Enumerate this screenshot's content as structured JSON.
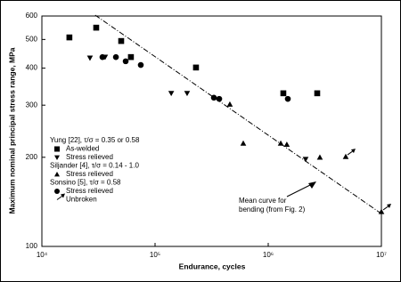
{
  "chart_data": {
    "type": "scatter",
    "xlabel": "Endurance, cycles",
    "ylabel": "Maximum nominal principal stress range, MPa",
    "xscale": "log",
    "yscale": "log",
    "xlim": [
      10000,
      10000000
    ],
    "ylim": [
      100,
      600
    ],
    "xticks": [
      {
        "value": 10000,
        "label": "10⁴"
      },
      {
        "value": 100000,
        "label": "10⁵"
      },
      {
        "value": 1000000,
        "label": "10⁶"
      },
      {
        "value": 10000000,
        "label": "10⁷"
      }
    ],
    "yticks": [
      100,
      200,
      300,
      400,
      500,
      600
    ],
    "legend_groups": [
      "Yung [22], τ/σ = 0.35 or 0.58",
      "Siljander [4], τ/σ = 0.14 - 1.0",
      "Sonsino [5], τ/σ = 0.58"
    ],
    "legend_unbroken": "Unbroken",
    "series": [
      {
        "name": "As-welded",
        "marker": "square",
        "color": "#000000",
        "x": [
          17500,
          30200,
          50200,
          61200,
          230000,
          1360000,
          2710000
        ],
        "values": [
          508,
          548,
          494,
          436,
          402,
          329,
          329
        ]
      },
      {
        "name": "Stress relieved",
        "marker": "triangle-down",
        "color": "#000000",
        "x": [
          26600,
          36200,
          139000,
          192000,
          2140000
        ],
        "values": [
          433,
          436,
          329,
          329,
          197
        ]
      },
      {
        "name": "Stress relieved",
        "marker": "triangle-up",
        "color": "#000000",
        "x": [
          458000,
          602000,
          1290000,
          1460000,
          2860000,
          4840000,
          10000000
        ],
        "values": [
          302,
          223,
          223,
          221,
          200,
          201,
          131
        ],
        "unbroken": [
          false,
          false,
          false,
          false,
          false,
          true,
          true
        ]
      },
      {
        "name": "Stress relieved",
        "marker": "circle",
        "color": "#000000",
        "x": [
          34300,
          45100,
          55000,
          74800,
          331000,
          369000,
          1490000
        ],
        "values": [
          436,
          436,
          422,
          410,
          318,
          315,
          315
        ]
      }
    ],
    "mean_curve": {
      "x": [
        29600,
        10000000
      ],
      "values": [
        604,
        129
      ],
      "color": "#000000"
    },
    "annotation": [
      "Mean curve for",
      "bending (from Fig. 2)"
    ]
  }
}
